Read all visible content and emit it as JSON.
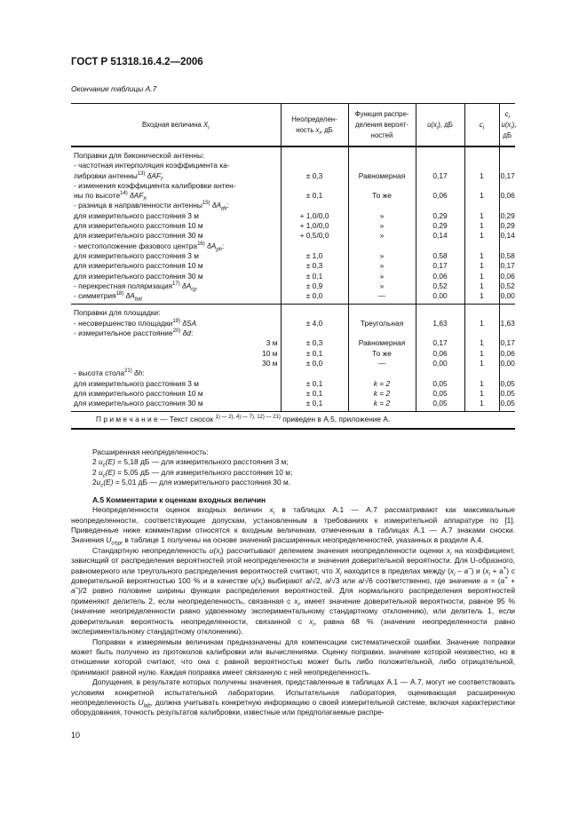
{
  "header": {
    "doc_title": "ГОСТ Р 51318.16.4.2—2006",
    "table_caption": "Окончание таблицы А.7"
  },
  "table": {
    "columns": [
      [
        {
          "t": "Входная величина "
        },
        {
          "t": "X",
          "i": true,
          "sub": "i"
        }
      ],
      [
        {
          "t": "Неопределен-ность "
        },
        {
          "t": "x",
          "i": true,
          "sub": "i"
        },
        {
          "t": ", дБ"
        }
      ],
      [
        {
          "t": "Функция распре-деления вероят-ностей"
        }
      ],
      [
        {
          "t": "u(x",
          "i": true,
          "sub": "i"
        },
        {
          "t": "), дБ"
        }
      ],
      [
        {
          "t": "c",
          "i": true,
          "sub": "i"
        }
      ],
      [
        {
          "t": "c",
          "i": true,
          "sub": "i"
        },
        {
          "t": " u(x",
          "i": true,
          "sub": "i"
        },
        {
          "t": "), дБ"
        }
      ]
    ],
    "groups": [
      {
        "rows": [
          {
            "label": [
              {
                "t": "Поправки для биконической антенны:"
              }
            ]
          },
          {
            "label": [
              {
                "t": "- частотная интерполяция коэффициента ка-"
              }
            ]
          },
          {
            "label": [
              {
                "t": "либровки антенны",
                "sup": "13)"
              },
              {
                "t": " δAF",
                "i": true,
                "sub": "f"
              }
            ],
            "values": [
              "± 0,3",
              "Равномерная",
              "0,17",
              "1",
              "0,17"
            ]
          },
          {
            "label": [
              {
                "t": "- изменения коэффициента калибровки антен-"
              }
            ]
          },
          {
            "label": [
              {
                "t": "ны по высоте",
                "sup": "14)"
              },
              {
                "t": " δAF",
                "i": true,
                "sub": "h"
              }
            ],
            "values": [
              "± 0,1",
              "То же",
              "0,06",
              "1",
              "0,06"
            ]
          },
          {
            "label": [
              {
                "t": "- разница в направленности антенны",
                "sup": "15)"
              },
              {
                "t": " δA",
                "i": true,
                "sub": "dir"
              },
              {
                "t": ":"
              }
            ]
          },
          {
            "label": [
              {
                "t": " для измерительного расстояния 3 м"
              }
            ],
            "values": [
              "+ 1,0/0,0",
              "»",
              "0,29",
              "1",
              "0,29"
            ]
          },
          {
            "label": [
              {
                "t": " для измерительного расстояния 10 м"
              }
            ],
            "values": [
              "+ 1,0/0,0",
              "»",
              "0,29",
              "1",
              "0,29"
            ]
          },
          {
            "label": [
              {
                "t": " для измерительного расстояния 30 м"
              }
            ],
            "values": [
              "+ 0,5/0,0",
              "»",
              "0,14",
              "1",
              "0,14"
            ]
          },
          {
            "label": [
              {
                "t": "- местоположение фазового центра",
                "sup": "16)"
              },
              {
                "t": " δA",
                "i": true,
                "sub": "ph"
              },
              {
                "t": ":"
              }
            ]
          },
          {
            "label": [
              {
                "t": " для измерительного расстояния 3 м"
              }
            ],
            "values": [
              "± 1,0",
              "»",
              "0,58",
              "1",
              "0,58"
            ]
          },
          {
            "label": [
              {
                "t": " для измерительного расстояния 10 м"
              }
            ],
            "values": [
              "± 0,3",
              "»",
              "0,17",
              "1",
              "0,17"
            ]
          },
          {
            "label": [
              {
                "t": " для измерительного расстояния 30 м"
              }
            ],
            "values": [
              "± 0,1",
              "»",
              "0,06",
              "1",
              "0,06"
            ]
          },
          {
            "label": [
              {
                "t": "- перекрестная поляризация",
                "sup": "17)"
              },
              {
                "t": " δA",
                "i": true,
                "sub": "cp"
              }
            ],
            "values": [
              "± 0,9",
              "»",
              "0,52",
              "1",
              "0,52"
            ]
          },
          {
            "label": [
              {
                "t": "- симметрия",
                "sup": "18)"
              },
              {
                "t": " δA",
                "i": true,
                "sub": "bal"
              }
            ],
            "values": [
              "± 0,0",
              "—",
              "0,00",
              "1",
              "0,00"
            ]
          }
        ]
      },
      {
        "rows": [
          {
            "label": [
              {
                "t": "Поправки для площадки:"
              }
            ]
          },
          {
            "label": [
              {
                "t": "- несовершенство площадки",
                "sup": "19)"
              },
              {
                "t": " δSA",
                "i": true
              }
            ],
            "values": [
              "± 4,0",
              "Треугольная",
              "1,63",
              "1",
              "1,63"
            ]
          },
          {
            "label": [
              {
                "t": "- измерительное расстояние",
                "sup": "20)"
              },
              {
                "t": " δd",
                "i": true
              },
              {
                "t": ":"
              }
            ]
          },
          {
            "label": [
              {
                "t": "3 м"
              }
            ],
            "right": true,
            "values": [
              "± 0,3",
              "Равномерная",
              "0,17",
              "1",
              "0,17"
            ]
          },
          {
            "label": [
              {
                "t": "10 м"
              }
            ],
            "right": true,
            "values": [
              "± 0,1",
              "То же",
              "0,06",
              "1",
              "0,06"
            ]
          },
          {
            "label": [
              {
                "t": "30 м"
              }
            ],
            "right": true,
            "values": [
              "± 0,0",
              "—",
              "0,00",
              "1",
              "0,00"
            ]
          },
          {
            "label": [
              {
                "t": "- высота стола",
                "sup": "21)"
              },
              {
                "t": " δh",
                "i": true
              },
              {
                "t": ":"
              }
            ]
          },
          {
            "label": [
              {
                "t": " для измерительного расстояния 3 м"
              }
            ],
            "values": [
              "± 0,1",
              "k = 2",
              "0,05",
              "1",
              "0,05"
            ]
          },
          {
            "label": [
              {
                "t": " для измерительного расстояния 10 м"
              }
            ],
            "values": [
              "± 0,1",
              "k = 2",
              "0,05",
              "1",
              "0,05"
            ]
          },
          {
            "label": [
              {
                "t": " для измерительного расстояния 30 м"
              }
            ],
            "values": [
              "± 0,1",
              "k = 2",
              "0,05",
              "1",
              "0,05"
            ]
          }
        ]
      }
    ],
    "note": [
      {
        "t": "П р и м е ч а н и е — Текст сносок "
      },
      {
        "t": "",
        "sup": "1) — 2), 4) — 7), 12) — 21)"
      },
      {
        "t": " приведен в А.5, приложение А."
      }
    ]
  },
  "expanded": {
    "title": "Расширенная неопределенность:",
    "lines": [
      [
        {
          "t": "2 "
        },
        {
          "t": "u",
          "i": true,
          "sub": "c"
        },
        {
          "t": "(E)",
          "i": true
        },
        {
          "t": " = 5,18 дБ — для измерительного расстояния 3 м;"
        }
      ],
      [
        {
          "t": "2 "
        },
        {
          "t": "u",
          "i": true,
          "sub": "c"
        },
        {
          "t": "(E)",
          "i": true
        },
        {
          "t": " = 5,05 дБ — для измерительного расстояния 10 м;"
        }
      ],
      [
        {
          "t": "2"
        },
        {
          "t": "u",
          "i": true,
          "sub": "c"
        },
        {
          "t": "(E)",
          "i": true
        },
        {
          "t": " = 5,01 дБ — для измерительного расстояния 30 м."
        }
      ]
    ]
  },
  "section": {
    "heading": "А.5  Комментарии к оценкам входных величин",
    "paragraphs": [
      [
        {
          "t": "Неопределенности оценок входных величин "
        },
        {
          "t": "x",
          "i": true,
          "sub": "i"
        },
        {
          "t": " в таблицах А.1 — А.7 рассматривают как максимальные неопределенности, соответствующие допускам, установленным в требованиях к измерительной аппаратуре по [1]. Приведенные ниже комментарии относятся к входным величинам, отмеченным в таблицах А.1 — А.7 знаками сноски. Значения "
        },
        {
          "t": "U",
          "i": true,
          "sub": "cispr"
        },
        {
          "t": " в таблице 1 получены на основе значений расширенных неопределенностей, указанных в разделе А.4."
        }
      ],
      [
        {
          "t": "Стандартную неопределенность "
        },
        {
          "t": "u(x",
          "i": true,
          "sub": "i"
        },
        {
          "t": ") рассчитывают делением значения неопределенности оценки "
        },
        {
          "t": "x",
          "i": true,
          "sub": "i"
        },
        {
          "t": " на коэффициент, зависящий от распределения вероятностей этой неопределенности и значения доверительной вероятности. Для U-образного, равномерного или треугольного распределения вероятностей считают, что "
        },
        {
          "t": "X",
          "i": true,
          "sub": "i"
        },
        {
          "t": " находится в пределах между ("
        },
        {
          "t": "x",
          "i": true,
          "sub": "i"
        },
        {
          "t": " – "
        },
        {
          "t": "a",
          "i": true,
          "sup": "–"
        },
        {
          "t": ") и ("
        },
        {
          "t": "x",
          "i": true,
          "sub": "i"
        },
        {
          "t": " + a"
        },
        {
          "t": "",
          "sup": "+"
        },
        {
          "t": ") с доверительной вероятностью 100 % и в качестве "
        },
        {
          "t": "u(x",
          "i": true,
          "sub": "i"
        },
        {
          "t": ") выбирают "
        },
        {
          "t": "a",
          "i": true
        },
        {
          "t": "/√2, "
        },
        {
          "t": "a",
          "i": true
        },
        {
          "t": "/√3 или "
        },
        {
          "t": "a",
          "i": true
        },
        {
          "t": "/√6 соответственно, где значение "
        },
        {
          "t": "a",
          "i": true
        },
        {
          "t": " = ("
        },
        {
          "t": "a",
          "i": true,
          "sup": "+"
        },
        {
          "t": " + "
        },
        {
          "t": "a",
          "i": true,
          "sup": "–"
        },
        {
          "t": ")/2 равно половине ширины функции распределения вероятностей. Для нормального распределения вероятностей применяют делитель 2, если неопределенность, связанная с "
        },
        {
          "t": "x",
          "i": true,
          "sub": "i"
        },
        {
          "t": ", имеет значение доверительной вероятности, равное 95 % (значение неопределенности равно удвоенному экспериментальному стандартному отклонению), или делитель 1, если доверительная вероятность неопределенности, связанной с "
        },
        {
          "t": "x",
          "i": true,
          "sub": "i"
        },
        {
          "t": ", равна 68 % (значение неопределенности равно экспериментальному стандартному отклонению)."
        }
      ],
      [
        {
          "t": "Поправки к измеряемым величинам предназначены для компенсации систематической ошибки. Значение поправки может быть получено из протоколов калибровки или вычислениями. Оценку поправки, значение которой неизвестно, но в отношении которой считают, что она с равной вероятностью может быть либо положительной, либо отрицательной, принимают равной нулю. Каждая поправка имеет связанную с ней неопределенность."
        }
      ],
      [
        {
          "t": "Допущения, в результате которых получены значения, представленные в таблицах А.1 — А.7, могут не соответствовать условиям конкретной испытательной лаборатории. Испытательная лаборатория, оценивающая расширенную неопределенность "
        },
        {
          "t": "U",
          "i": true,
          "sub": "lab"
        },
        {
          "t": ", должна учитывать конкретную информацию о своей измерительной системе, включая характеристики оборудования, точность результатов калибровки, известные или предполагаемые распре-"
        }
      ]
    ]
  },
  "footer": {
    "page_number": "10"
  }
}
